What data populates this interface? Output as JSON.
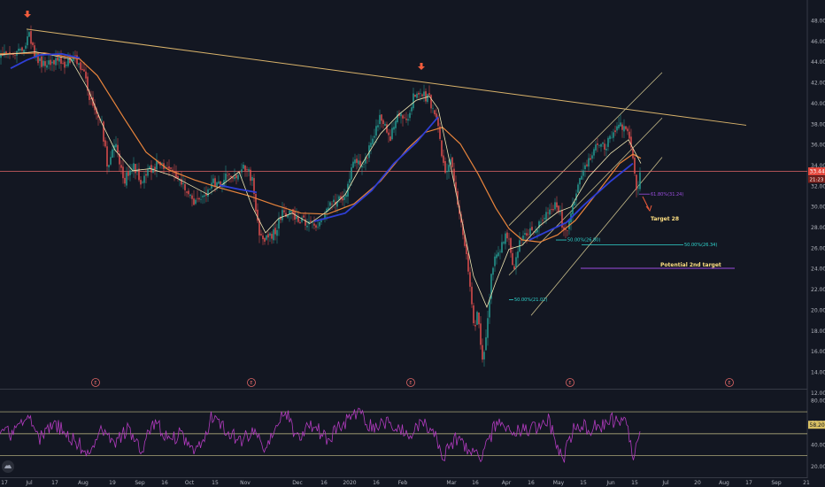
{
  "colors": {
    "background": "#131722",
    "up_candle": "#26a69a",
    "down_candle": "#ef5350",
    "ma_fast": "#f0e6b2",
    "ma_mid": "#e8843c",
    "ma_slow": "#2f3fd6",
    "trendline": "#d9b36b",
    "channel": "#c8bd8a",
    "price_line": "#e06666",
    "rsi_line": "#b23bbf",
    "rsi_band": "#c9c28a",
    "fib_cyan": "#2fd6cf",
    "fib_purple": "#9c4de0",
    "price_badge": "#e5483d",
    "rsi_badge": "#d9c063",
    "event_marker": "#e06666",
    "arrow": "#f25c3c"
  },
  "chart_data": {
    "type": "candlestick",
    "price_axis": {
      "ylim": [
        12.5,
        49.5
      ],
      "ticks": [
        "48.00",
        "46.00",
        "44.00",
        "42.00",
        "40.00",
        "38.00",
        "36.00",
        "34.00",
        "32.00",
        "30.00",
        "28.00",
        "26.00",
        "24.00",
        "22.00",
        "20.00",
        "18.00",
        "16.00",
        "14.00",
        "12.00"
      ]
    },
    "time_axis": {
      "labels": [
        "17",
        "Jul",
        "17",
        "Aug",
        "19",
        "Sep",
        "16",
        "Oct",
        "15",
        "Nov",
        "Dec",
        "16",
        "2020",
        "16",
        "Feb",
        "Mar",
        "16",
        "Apr",
        "16",
        "May",
        "15",
        "Jun",
        "15",
        "Jul",
        "20",
        "Aug",
        "17",
        "Sep",
        "21"
      ]
    },
    "price_anchors": [
      [
        0,
        44.6
      ],
      [
        10,
        44.8
      ],
      [
        20,
        44.9
      ],
      [
        28,
        45.6
      ],
      [
        33,
        47.0
      ],
      [
        38,
        44.8
      ],
      [
        50,
        43.6
      ],
      [
        60,
        44.0
      ],
      [
        75,
        43.9
      ],
      [
        85,
        44.5
      ],
      [
        95,
        42.8
      ],
      [
        105,
        39.4
      ],
      [
        115,
        38.0
      ],
      [
        122,
        33.6
      ],
      [
        130,
        36.6
      ],
      [
        140,
        32.5
      ],
      [
        150,
        34.0
      ],
      [
        160,
        32.4
      ],
      [
        170,
        33.6
      ],
      [
        180,
        34.3
      ],
      [
        190,
        33.5
      ],
      [
        200,
        32.8
      ],
      [
        210,
        31.9
      ],
      [
        220,
        30.4
      ],
      [
        230,
        30.9
      ],
      [
        240,
        32.4
      ],
      [
        250,
        32.2
      ],
      [
        255,
        33.3
      ],
      [
        265,
        32.7
      ],
      [
        275,
        34.1
      ],
      [
        285,
        32.6
      ],
      [
        292,
        27.6
      ],
      [
        300,
        26.8
      ],
      [
        310,
        27.5
      ],
      [
        320,
        29.5
      ],
      [
        330,
        29.2
      ],
      [
        345,
        28.5
      ],
      [
        360,
        28.2
      ],
      [
        375,
        30.4
      ],
      [
        390,
        31.1
      ],
      [
        400,
        34.8
      ],
      [
        410,
        33.6
      ],
      [
        420,
        36.5
      ],
      [
        430,
        38.7
      ],
      [
        440,
        36.5
      ],
      [
        450,
        39.1
      ],
      [
        460,
        38.6
      ],
      [
        468,
        40.8
      ],
      [
        475,
        41.0
      ],
      [
        485,
        40.4
      ],
      [
        495,
        37.9
      ],
      [
        502,
        33.3
      ],
      [
        510,
        34.4
      ],
      [
        520,
        28.5
      ],
      [
        528,
        25.0
      ],
      [
        535,
        18.3
      ],
      [
        540,
        19.8
      ],
      [
        545,
        15.2
      ],
      [
        550,
        17.9
      ],
      [
        555,
        23.6
      ],
      [
        560,
        25.3
      ],
      [
        565,
        25.4
      ],
      [
        570,
        27.3
      ],
      [
        575,
        26.7
      ],
      [
        580,
        23.6
      ],
      [
        590,
        27.5
      ],
      [
        600,
        27.5
      ],
      [
        610,
        28.5
      ],
      [
        620,
        29.9
      ],
      [
        630,
        30.3
      ],
      [
        638,
        27.0
      ],
      [
        645,
        29.4
      ],
      [
        655,
        32.6
      ],
      [
        665,
        34.5
      ],
      [
        675,
        35.9
      ],
      [
        685,
        36.0
      ],
      [
        695,
        37.5
      ],
      [
        705,
        37.9
      ],
      [
        710,
        36.7
      ],
      [
        715,
        34.5
      ],
      [
        720,
        31.4
      ],
      [
        724,
        33.4
      ]
    ],
    "ma_fast_anchors": [
      [
        0,
        44.7
      ],
      [
        40,
        45.0
      ],
      [
        80,
        44.3
      ],
      [
        100,
        41.3
      ],
      [
        115,
        38.1
      ],
      [
        130,
        35.5
      ],
      [
        150,
        33.5
      ],
      [
        170,
        33.7
      ],
      [
        195,
        33.0
      ],
      [
        215,
        32.1
      ],
      [
        235,
        31.2
      ],
      [
        255,
        32.4
      ],
      [
        270,
        33.4
      ],
      [
        285,
        30.0
      ],
      [
        300,
        27.5
      ],
      [
        315,
        28.9
      ],
      [
        330,
        29.4
      ],
      [
        350,
        28.4
      ],
      [
        370,
        29.6
      ],
      [
        390,
        31.2
      ],
      [
        410,
        34.3
      ],
      [
        430,
        37.1
      ],
      [
        450,
        38.9
      ],
      [
        470,
        40.3
      ],
      [
        485,
        40.7
      ],
      [
        495,
        39.5
      ],
      [
        505,
        35.6
      ],
      [
        520,
        29.4
      ],
      [
        535,
        23.3
      ],
      [
        550,
        20.3
      ],
      [
        560,
        22.7
      ],
      [
        575,
        25.9
      ],
      [
        590,
        26.3
      ],
      [
        610,
        28.2
      ],
      [
        630,
        29.5
      ],
      [
        645,
        30.0
      ],
      [
        665,
        32.9
      ],
      [
        690,
        35.2
      ],
      [
        710,
        36.5
      ],
      [
        724,
        34.2
      ]
    ],
    "ma_mid_anchors": [
      [
        0,
        44.8
      ],
      [
        50,
        44.9
      ],
      [
        90,
        44.3
      ],
      [
        110,
        42.7
      ],
      [
        140,
        38.6
      ],
      [
        165,
        35.3
      ],
      [
        190,
        33.6
      ],
      [
        220,
        32.6
      ],
      [
        250,
        31.8
      ],
      [
        280,
        31.1
      ],
      [
        310,
        30.2
      ],
      [
        340,
        29.4
      ],
      [
        370,
        29.3
      ],
      [
        400,
        30.3
      ],
      [
        430,
        32.5
      ],
      [
        460,
        35.6
      ],
      [
        480,
        37.2
      ],
      [
        500,
        37.7
      ],
      [
        520,
        36.1
      ],
      [
        540,
        33.2
      ],
      [
        560,
        29.9
      ],
      [
        575,
        27.9
      ],
      [
        590,
        26.8
      ],
      [
        610,
        26.6
      ],
      [
        630,
        27.3
      ],
      [
        650,
        28.7
      ],
      [
        675,
        31.4
      ],
      [
        700,
        34.2
      ],
      [
        715,
        35.1
      ],
      [
        724,
        34.7
      ]
    ],
    "ma_slow_anchors": [
      [
        12,
        43.4
      ],
      [
        30,
        44.2
      ],
      [
        45,
        44.7
      ],
      [
        70,
        44.8
      ],
      [
        90,
        44.4
      ],
      [
        null,
        null
      ],
      [
        248,
        32.1
      ],
      [
        270,
        31.7
      ],
      [
        290,
        31.4
      ],
      [
        null,
        null
      ],
      [
        355,
        28.6
      ],
      [
        390,
        29.4
      ],
      [
        420,
        31.6
      ],
      [
        445,
        34.2
      ],
      [
        470,
        36.2
      ],
      [
        495,
        38.7
      ],
      [
        null,
        null
      ],
      [
        598,
        26.8
      ],
      [
        615,
        27.5
      ],
      [
        640,
        28.5
      ],
      [
        660,
        30.2
      ],
      [
        690,
        32.5
      ],
      [
        715,
        34.2
      ]
    ],
    "rsi": {
      "ylim": [
        12,
        87
      ],
      "ticks": [
        "80.00",
        "60.00",
        "40.00",
        "20.00"
      ],
      "bands": [
        70,
        50,
        30
      ],
      "anchors": [
        [
          0,
          55
        ],
        [
          15,
          48
        ],
        [
          30,
          70
        ],
        [
          45,
          45
        ],
        [
          60,
          60
        ],
        [
          75,
          50
        ],
        [
          90,
          40
        ],
        [
          100,
          28
        ],
        [
          115,
          52
        ],
        [
          130,
          40
        ],
        [
          145,
          55
        ],
        [
          160,
          35
        ],
        [
          175,
          62
        ],
        [
          190,
          45
        ],
        [
          205,
          50
        ],
        [
          220,
          30
        ],
        [
          240,
          66
        ],
        [
          255,
          55
        ],
        [
          270,
          42
        ],
        [
          285,
          52
        ],
        [
          300,
          38
        ],
        [
          322,
          72
        ],
        [
          335,
          45
        ],
        [
          350,
          60
        ],
        [
          370,
          45
        ],
        [
          385,
          58
        ],
        [
          405,
          70
        ],
        [
          420,
          55
        ],
        [
          440,
          62
        ],
        [
          460,
          48
        ],
        [
          475,
          60
        ],
        [
          490,
          55
        ],
        [
          500,
          28
        ],
        [
          515,
          45
        ],
        [
          530,
          32
        ],
        [
          545,
          28
        ],
        [
          560,
          60
        ],
        [
          580,
          50
        ],
        [
          600,
          55
        ],
        [
          620,
          62
        ],
        [
          635,
          25
        ],
        [
          650,
          58
        ],
        [
          670,
          55
        ],
        [
          690,
          62
        ],
        [
          705,
          62
        ],
        [
          712,
          45
        ],
        [
          716,
          25
        ],
        [
          722,
          55
        ],
        [
          724,
          58
        ]
      ]
    },
    "annotations": {
      "price_label": "33.44",
      "time_label": "21:23",
      "rsi_label": "58.20",
      "target1": "Target 28",
      "target2": "Potential 2nd target",
      "fib_a": "50.00%(21.02)",
      "fib_b": "50.00%(26.80)",
      "fib_c": "50.00%(26.34)",
      "fib_d": "61.80%(31.24)",
      "event_letter": "E"
    },
    "event_marker_count": 5,
    "grid": false
  }
}
